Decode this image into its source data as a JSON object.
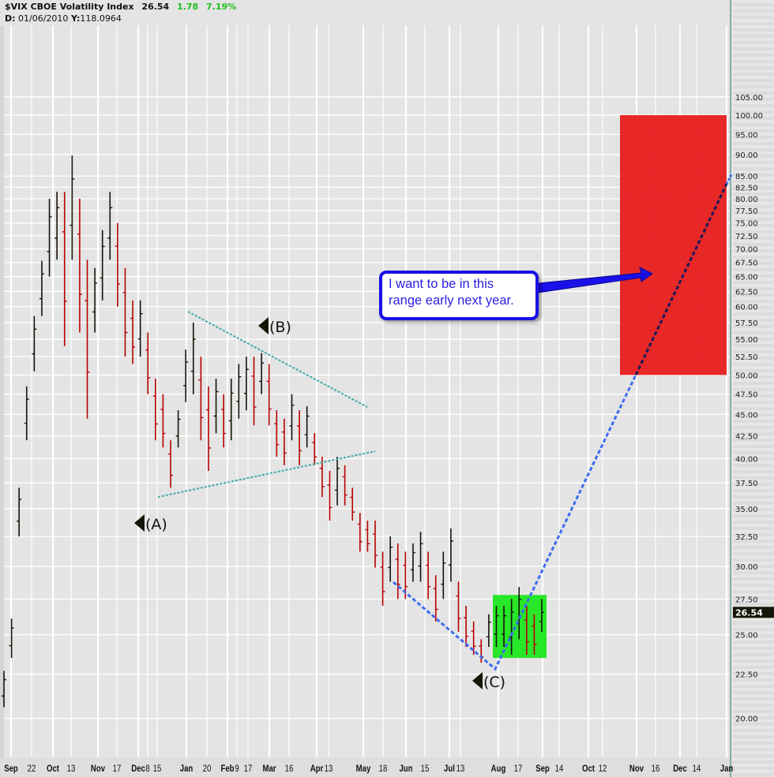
{
  "header": {
    "symbol": "$VIX CBOE Volatility Index",
    "last": "26.54",
    "change": "1.78",
    "change_pct": "7.19%",
    "cursor_date_label": "D:",
    "cursor_date": "01/06/2010",
    "cursor_y_label": "Y:",
    "cursor_y": "118.0964"
  },
  "colors": {
    "up": "#141408",
    "down": "#b80000",
    "grid": "#ffffff",
    "bg": "#e4e4e4",
    "target_zone": "#e81c1c",
    "consolidation_zone": "#1ee61e",
    "triangle_lines": "#3fa8a8",
    "projection_line": "#3d6cf0",
    "callout": "#1a10e8"
  },
  "annotations": {
    "a": "(A)",
    "b": "(B)",
    "c": "(C)",
    "callout": "I want to be in this range early next year.",
    "callout_line1": "I want to be in this",
    "callout_line2": "range early next year."
  },
  "price_tag": "26.54",
  "chart_data": {
    "type": "ohlc-bar",
    "title": "$VIX CBOE Volatility Index",
    "y_scale": "log",
    "ylim": [
      18.5,
      112
    ],
    "grid": true,
    "y_ticks": [
      "105.00",
      "100.00",
      "95.00",
      "90.00",
      "85.00",
      "82.50",
      "80.00",
      "77.50",
      "75.00",
      "72.50",
      "70.00",
      "67.50",
      "65.00",
      "62.50",
      "60.00",
      "57.50",
      "55.00",
      "52.50",
      "50.00",
      "47.50",
      "45.00",
      "42.50",
      "40.00",
      "37.50",
      "35.00",
      "32.50",
      "30.00",
      "27.50",
      "25.00",
      "22.50",
      "20.00"
    ],
    "x_ticks": [
      {
        "label": "Sep",
        "bold": true
      },
      {
        "label": "22",
        "bold": false
      },
      {
        "label": "Oct",
        "bold": true
      },
      {
        "label": "13",
        "bold": false
      },
      {
        "label": "Nov",
        "bold": true
      },
      {
        "label": "17",
        "bold": false
      },
      {
        "label": "Dec",
        "bold": true
      },
      {
        "label": "8",
        "bold": false
      },
      {
        "label": "15",
        "bold": false
      },
      {
        "label": "Jan",
        "bold": true
      },
      {
        "label": "20",
        "bold": false
      },
      {
        "label": "Feb",
        "bold": true
      },
      {
        "label": "9",
        "bold": false
      },
      {
        "label": "17",
        "bold": false
      },
      {
        "label": "Mar",
        "bold": true
      },
      {
        "label": "16",
        "bold": false
      },
      {
        "label": "Apr",
        "bold": true
      },
      {
        "label": "13",
        "bold": false
      },
      {
        "label": "May",
        "bold": true
      },
      {
        "label": "18",
        "bold": false
      },
      {
        "label": "Jun",
        "bold": true
      },
      {
        "label": "15",
        "bold": false
      },
      {
        "label": "Jul",
        "bold": true
      },
      {
        "label": "13",
        "bold": false
      },
      {
        "label": "Aug",
        "bold": true
      },
      {
        "label": "17",
        "bold": false
      },
      {
        "label": "Sep",
        "bold": true
      },
      {
        "label": "14",
        "bold": false
      },
      {
        "label": "Oct",
        "bold": true
      },
      {
        "label": "12",
        "bold": false
      },
      {
        "label": "Nov",
        "bold": true
      },
      {
        "label": "16",
        "bold": false
      },
      {
        "label": "Dec",
        "bold": true
      },
      {
        "label": "14",
        "bold": false
      },
      {
        "label": "Jan",
        "bold": true
      }
    ],
    "bars_high_low": [
      [
        22.7,
        20.6
      ],
      [
        26.1,
        23.5
      ],
      [
        37,
        32.5
      ],
      [
        48.5,
        42
      ],
      [
        58.5,
        50.5
      ],
      [
        67.8,
        58.5
      ],
      [
        80,
        65
      ],
      [
        81.5,
        68
      ],
      [
        81.5,
        54
      ],
      [
        89.8,
        68
      ],
      [
        80,
        56
      ],
      [
        68,
        44.5
      ],
      [
        66.5,
        56
      ],
      [
        73.6,
        61
      ],
      [
        81.5,
        68
      ],
      [
        75,
        60
      ],
      [
        66.5,
        52.5
      ],
      [
        61,
        51.5
      ],
      [
        61,
        52.5
      ],
      [
        56,
        47.5
      ],
      [
        49.5,
        42
      ],
      [
        47.5,
        41.2
      ],
      [
        42,
        37
      ],
      [
        45.5,
        41.2
      ],
      [
        53.5,
        46.5
      ],
      [
        57.5,
        47.5
      ],
      [
        52.5,
        42
      ],
      [
        48.5,
        38.7
      ],
      [
        49.5,
        42.8
      ],
      [
        47.5,
        41.2
      ],
      [
        49.5,
        42
      ],
      [
        51.5,
        44.5
      ],
      [
        52.5,
        45.5
      ],
      [
        52.5,
        43.7
      ],
      [
        53,
        47.5
      ],
      [
        51.5,
        43.7
      ],
      [
        45.5,
        40.2
      ],
      [
        44.5,
        39.3
      ],
      [
        47.5,
        42
      ],
      [
        45.5,
        39.3
      ],
      [
        46,
        41.2
      ],
      [
        42.8,
        39.3
      ],
      [
        40.2,
        36.1
      ],
      [
        38.7,
        33.9
      ],
      [
        40.2,
        35.3
      ],
      [
        39.3,
        35.3
      ],
      [
        37,
        33.9
      ],
      [
        34.6,
        31.2
      ],
      [
        33.9,
        31.2
      ],
      [
        33.9,
        29.9
      ],
      [
        31.2,
        27
      ],
      [
        32.5,
        28.8
      ],
      [
        31.9,
        27.5
      ],
      [
        31.2,
        27.5
      ],
      [
        31.9,
        28.8
      ],
      [
        32.9,
        28.8
      ],
      [
        31.2,
        27.5
      ],
      [
        29.3,
        25.9
      ],
      [
        31.2,
        27.5
      ],
      [
        33.2,
        28.8
      ],
      [
        28.8,
        25.2
      ],
      [
        27,
        24.2
      ],
      [
        25.9,
        23.7
      ],
      [
        24.7,
        23.2
      ],
      [
        26.4,
        24.2
      ],
      [
        27,
        24.2
      ],
      [
        27,
        24.2
      ],
      [
        27.5,
        23.7
      ],
      [
        28.4,
        24.7
      ],
      [
        27,
        23.7
      ],
      [
        26.4,
        23.7
      ],
      [
        27.5,
        25.2
      ]
    ],
    "last_close": 26.54,
    "target_zone": {
      "low": 50,
      "high": 100
    },
    "consolidation_zone": {
      "low": 23.5,
      "high": 27.8
    },
    "projection_target": 85
  }
}
